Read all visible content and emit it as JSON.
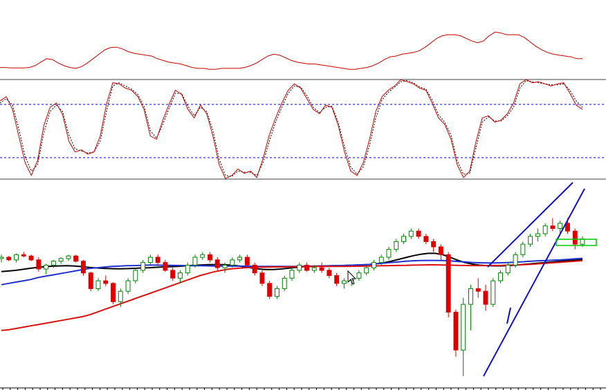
{
  "colors": {
    "background": "#ffffff",
    "separator": "#808080",
    "indicator_line": "#cc0000",
    "signal_line": "#000000",
    "level_line": "#0000cc",
    "candle_up": "#008000",
    "candle_down": "#dd0000",
    "ma_black": "#000000",
    "ma_blue": "#1f2fd0",
    "ma_red": "#dd1010",
    "trend_line": "#1010cc",
    "box": "#00cc00"
  },
  "chart_data": [
    {
      "type": "line",
      "panel": "top-indicator",
      "series": [
        {
          "values": [
            10,
            10,
            9,
            9,
            9,
            10,
            14,
            22,
            30,
            28,
            20,
            14,
            10,
            8,
            12,
            20,
            30,
            40,
            50,
            55,
            56,
            52,
            46,
            42,
            40,
            38,
            36,
            30,
            26,
            22,
            20,
            18,
            14,
            10,
            8,
            8,
            6,
            6,
            8,
            8,
            8,
            8,
            10,
            14,
            20,
            28,
            36,
            40,
            38,
            32,
            26,
            22,
            20,
            18,
            18,
            16,
            14,
            12,
            10,
            8,
            6,
            6,
            8,
            10,
            14,
            20,
            28,
            34,
            36,
            40,
            42,
            44,
            48,
            56,
            66,
            76,
            82,
            84,
            84,
            82,
            76,
            70,
            66,
            70,
            82,
            90,
            88,
            84,
            84,
            84,
            78,
            68,
            58,
            50,
            44,
            40,
            38,
            36,
            34,
            30,
            30
          ]
        }
      ]
    },
    {
      "type": "line",
      "panel": "stochastic-oscillator",
      "levels": [
        80,
        20
      ],
      "series": [
        {
          "values": [
            78,
            82,
            70,
            45,
            20,
            8,
            22,
            55,
            72,
            76,
            65,
            40,
            30,
            32,
            28,
            30,
            45,
            75,
            95,
            94,
            90,
            88,
            82,
            70,
            45,
            42,
            60,
            75,
            88,
            84,
            70,
            62,
            74,
            66,
            45,
            18,
            5,
            8,
            14,
            10,
            12,
            6,
            24,
            46,
            62,
            76,
            88,
            94,
            90,
            80,
            70,
            66,
            74,
            72,
            55,
            30,
            12,
            8,
            20,
            42,
            68,
            82,
            88,
            92,
            98,
            96,
            94,
            90,
            88,
            76,
            62,
            56,
            42,
            18,
            6,
            12,
            40,
            62,
            64,
            58,
            60,
            66,
            76,
            94,
            98,
            95,
            96,
            94,
            92,
            94,
            95,
            85,
            74,
            70
          ]
        },
        {
          "values": [
            76,
            80,
            74,
            52,
            26,
            12,
            18,
            48,
            68,
            74,
            68,
            46,
            33,
            31,
            29,
            30,
            40,
            68,
            92,
            95,
            92,
            89,
            84,
            73,
            50,
            43,
            56,
            71,
            85,
            85,
            73,
            64,
            72,
            68,
            50,
            23,
            8,
            7,
            12,
            11,
            11,
            8,
            20,
            40,
            58,
            72,
            85,
            92,
            91,
            83,
            72,
            67,
            72,
            73,
            58,
            35,
            16,
            9,
            16,
            36,
            62,
            79,
            86,
            91,
            96,
            97,
            95,
            91,
            89,
            79,
            65,
            58,
            46,
            22,
            9,
            10,
            34,
            58,
            63,
            59,
            59,
            64,
            72,
            90,
            97,
            96,
            95,
            94,
            93,
            93,
            94,
            88,
            78,
            72
          ]
        }
      ]
    },
    {
      "type": "candlestick",
      "panel": "price",
      "ohlc": [
        [
          65,
          68,
          62,
          66
        ],
        [
          66,
          67,
          63,
          64
        ],
        [
          64,
          69,
          62,
          68
        ],
        [
          68,
          70,
          66,
          67
        ],
        [
          67,
          68,
          63,
          64
        ],
        [
          64,
          66,
          55,
          57
        ],
        [
          57,
          61,
          53,
          60
        ],
        [
          60,
          64,
          58,
          63
        ],
        [
          63,
          66,
          61,
          65
        ],
        [
          65,
          68,
          63,
          67
        ],
        [
          67,
          68,
          62,
          63
        ],
        [
          63,
          64,
          52,
          54
        ],
        [
          54,
          55,
          40,
          42
        ],
        [
          42,
          50,
          40,
          48
        ],
        [
          48,
          52,
          44,
          46
        ],
        [
          46,
          47,
          30,
          32
        ],
        [
          32,
          42,
          28,
          40
        ],
        [
          40,
          50,
          38,
          48
        ],
        [
          48,
          58,
          46,
          56
        ],
        [
          56,
          64,
          54,
          62
        ],
        [
          62,
          68,
          60,
          66
        ],
        [
          66,
          68,
          60,
          62
        ],
        [
          62,
          64,
          55,
          56
        ],
        [
          56,
          58,
          48,
          50
        ],
        [
          50,
          56,
          46,
          54
        ],
        [
          54,
          62,
          52,
          60
        ],
        [
          60,
          68,
          58,
          66
        ],
        [
          66,
          70,
          64,
          68
        ],
        [
          68,
          70,
          62,
          64
        ],
        [
          64,
          66,
          56,
          58
        ],
        [
          58,
          62,
          54,
          60
        ],
        [
          60,
          66,
          58,
          64
        ],
        [
          64,
          68,
          62,
          66
        ],
        [
          66,
          68,
          58,
          60
        ],
        [
          60,
          62,
          52,
          54
        ],
        [
          54,
          56,
          44,
          46
        ],
        [
          46,
          48,
          34,
          36
        ],
        [
          36,
          44,
          34,
          42
        ],
        [
          42,
          52,
          40,
          50
        ],
        [
          50,
          58,
          48,
          56
        ],
        [
          56,
          62,
          54,
          60
        ],
        [
          60,
          62,
          55,
          56
        ],
        [
          56,
          60,
          54,
          58
        ],
        [
          58,
          62,
          54,
          56
        ],
        [
          56,
          58,
          50,
          52
        ],
        [
          52,
          54,
          44,
          46
        ],
        [
          46,
          50,
          42,
          48
        ],
        [
          48,
          52,
          44,
          50
        ],
        [
          50,
          56,
          48,
          54
        ],
        [
          54,
          60,
          52,
          58
        ],
        [
          58,
          64,
          56,
          62
        ],
        [
          62,
          68,
          60,
          66
        ],
        [
          66,
          74,
          64,
          72
        ],
        [
          72,
          80,
          70,
          78
        ],
        [
          78,
          84,
          76,
          82
        ],
        [
          82,
          88,
          80,
          86
        ],
        [
          86,
          88,
          80,
          82
        ],
        [
          82,
          84,
          76,
          78
        ],
        [
          78,
          80,
          70,
          74
        ],
        [
          74,
          76,
          64,
          68
        ],
        [
          68,
          70,
          20,
          24
        ],
        [
          24,
          26,
          -10,
          -5
        ],
        [
          -5,
          35,
          -25,
          30
        ],
        [
          30,
          45,
          10,
          42
        ],
        [
          42,
          50,
          35,
          40
        ],
        [
          40,
          45,
          25,
          30
        ],
        [
          30,
          50,
          28,
          48
        ],
        [
          48,
          56,
          46,
          54
        ],
        [
          54,
          62,
          52,
          60
        ],
        [
          60,
          70,
          58,
          68
        ],
        [
          68,
          78,
          66,
          76
        ],
        [
          76,
          84,
          74,
          82
        ],
        [
          82,
          88,
          78,
          84
        ],
        [
          84,
          92,
          82,
          90
        ],
        [
          90,
          96,
          86,
          88
        ],
        [
          88,
          94,
          84,
          92
        ],
        [
          92,
          96,
          84,
          86
        ],
        [
          86,
          88,
          72,
          76
        ],
        [
          76,
          82,
          74,
          80
        ]
      ],
      "moving_averages": [
        {
          "values": [
            55,
            55.5,
            56,
            56.8,
            57.6,
            58.3,
            58.8,
            59.2,
            59.4,
            59.5,
            59.3,
            58.8,
            58.2,
            57.8,
            57.5,
            57.3,
            57.2,
            57.3,
            57.5,
            57.8,
            58,
            58.3,
            58.6,
            58.8,
            59,
            59.4,
            59.8,
            60.1,
            60.3,
            60.4,
            60.4,
            60.1,
            59.5,
            58.7,
            57.8,
            57,
            56.6,
            56.6,
            57,
            57.6,
            58.2,
            58.7,
            59,
            59.2,
            59.3,
            59.5,
            59.6,
            59.8,
            60,
            60.2,
            60.4,
            61,
            61.8,
            63,
            64.4,
            65.8,
            67.2,
            68.3,
            69,
            69,
            68,
            66,
            63.8,
            62,
            60.8,
            60,
            59.6,
            59.4,
            59.4,
            59.6,
            60,
            60.5,
            61,
            61.5,
            62,
            62.5,
            63,
            63.4,
            63.8,
            64.2
          ]
        },
        {
          "values": [
            45,
            46,
            47,
            48,
            49,
            50.5,
            51.5,
            52.5,
            53.5,
            54.5,
            55.5,
            56.5,
            57.5,
            58,
            58.5,
            59,
            59.2,
            59.5,
            59.6,
            59.8,
            60,
            60,
            59.9,
            59.8,
            59.7,
            59.6,
            59.5,
            59.5,
            59.4,
            59.3,
            59.3,
            59.3,
            59.2,
            59.2,
            59.1,
            59,
            59,
            59,
            59,
            59,
            59,
            59.1,
            59.2,
            59.3,
            59.4,
            59.5,
            59.6,
            59.8,
            60,
            60.2,
            60.5,
            61,
            61.5,
            62,
            62.5,
            63,
            63.3,
            63.5,
            63.6,
            63.6,
            63.5,
            63.2,
            62.8,
            62.4,
            62,
            61.8,
            61.7,
            61.7,
            61.8,
            62,
            62.3,
            62.6,
            63,
            63.3,
            63.5,
            63.8,
            64,
            64.4,
            64.8,
            65.2
          ]
        },
        {
          "values": [
            10,
            10.5,
            11.5,
            12.5,
            13.5,
            14.5,
            15.5,
            16.5,
            17.5,
            18.5,
            19.5,
            20.5,
            22,
            24,
            26,
            28,
            30,
            32,
            34,
            36,
            38,
            40,
            42,
            44,
            46,
            48,
            50,
            52,
            53.5,
            55,
            56,
            57,
            57.5,
            58,
            58.2,
            58.4,
            58.5,
            58.6,
            58.6,
            58.7,
            58.8,
            58.8,
            58.9,
            59,
            59,
            59,
            59,
            59,
            59.1,
            59.2,
            59.3,
            59.4,
            59.5,
            59.6,
            59.7,
            59.8,
            60,
            60.1,
            60.2,
            60.2,
            60.1,
            60,
            59.8,
            59.7,
            59.6,
            59.6,
            59.6,
            59.7,
            59.8,
            60,
            60.1,
            60.3,
            60.6,
            61,
            61.4,
            61.8,
            62.2,
            62.6,
            63,
            63.4
          ]
        }
      ]
    }
  ]
}
